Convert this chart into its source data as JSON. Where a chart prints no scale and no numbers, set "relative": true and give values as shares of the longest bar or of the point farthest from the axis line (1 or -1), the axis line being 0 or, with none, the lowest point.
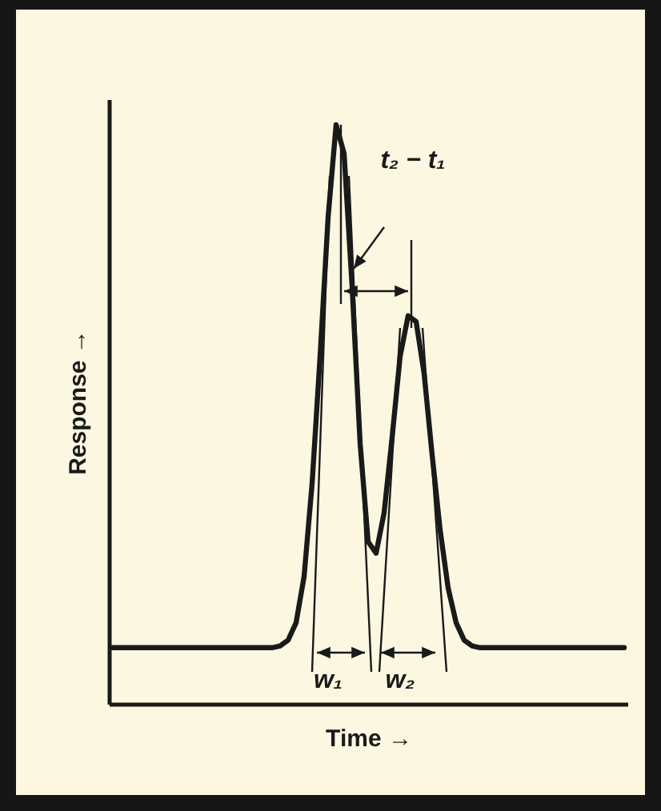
{
  "chart_data": {
    "type": "line",
    "relative": true,
    "xlabel": "Time →",
    "ylabel": "Response →",
    "color": "#1a1a1a",
    "categories": [
      null,
      null,
      null,
      null,
      null,
      null,
      null,
      null,
      null,
      null,
      null,
      null,
      null,
      null,
      null,
      null,
      null,
      null,
      null,
      null,
      null,
      null,
      null,
      null,
      null,
      null,
      null,
      null,
      null,
      null,
      null,
      null,
      null,
      null,
      null,
      null,
      null,
      null,
      null,
      null,
      null,
      null,
      null,
      null,
      null,
      null,
      null,
      null,
      null,
      null,
      null,
      null,
      null,
      null,
      null,
      null,
      null,
      null,
      null,
      null,
      null,
      null,
      null,
      null,
      null
    ],
    "values": [
      0.097,
      0.097,
      0.097,
      0.097,
      0.097,
      0.097,
      0.097,
      0.097,
      0.097,
      0.097,
      0.097,
      0.097,
      0.097,
      0.097,
      0.097,
      0.097,
      0.097,
      0.097,
      0.097,
      0.097,
      0.097,
      0.1,
      0.11,
      0.14,
      0.22,
      0.38,
      0.6,
      0.84,
      1.0,
      0.95,
      0.72,
      0.45,
      0.28,
      0.26,
      0.33,
      0.46,
      0.6,
      0.67,
      0.66,
      0.57,
      0.43,
      0.3,
      0.2,
      0.14,
      0.11,
      0.1,
      0.097,
      0.097,
      0.097,
      0.097,
      0.097,
      0.097,
      0.097,
      0.097,
      0.097,
      0.097,
      0.097,
      0.097,
      0.097,
      0.097,
      0.097,
      0.097,
      0.097,
      0.097,
      0.097
    ],
    "annotations": [
      "t₂ − t₁",
      "w₁",
      "w₂"
    ]
  }
}
